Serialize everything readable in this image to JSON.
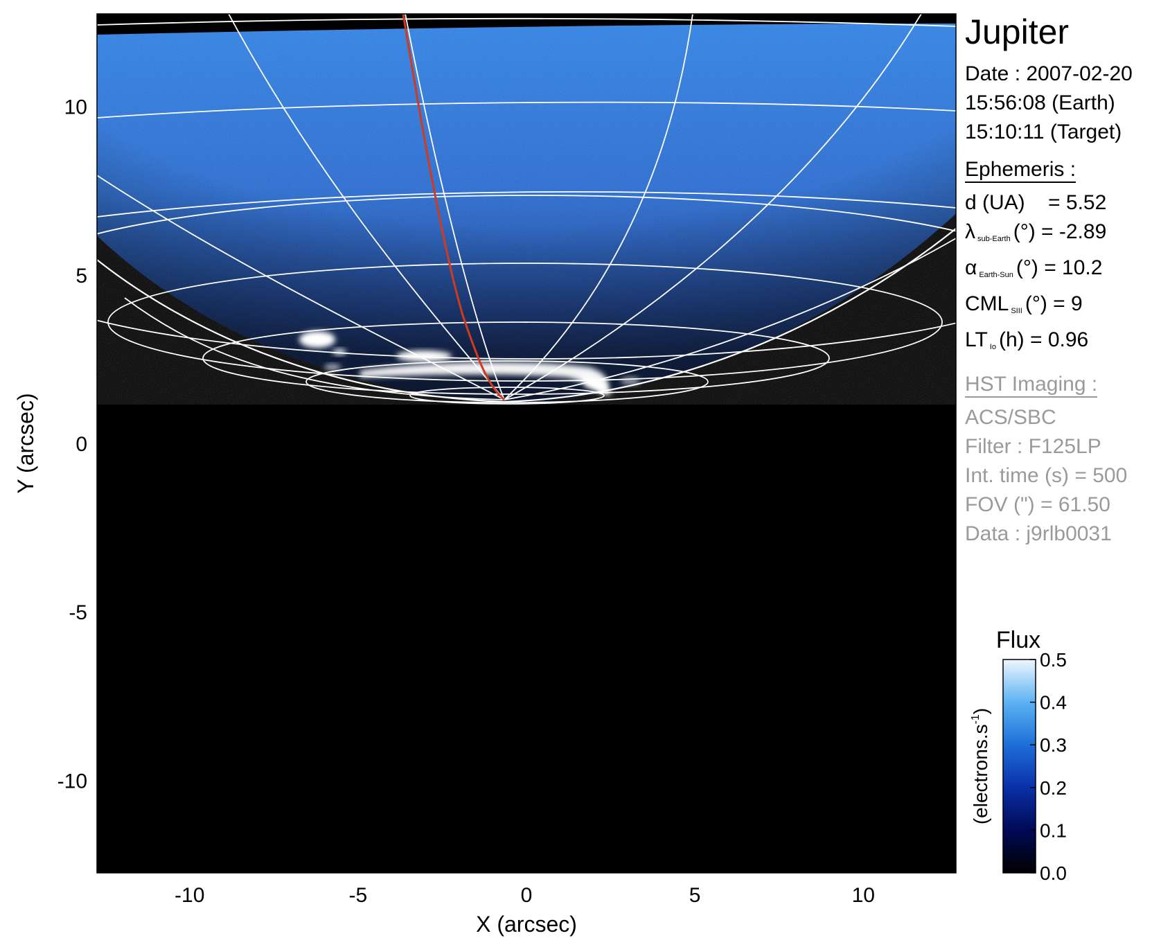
{
  "target": "Jupiter",
  "observation": {
    "date_line": "Date : 2007-02-20",
    "earth_time": "15:56:08 (Earth)",
    "target_time": "15:10:11 (Target)"
  },
  "ephemeris": {
    "heading": "Ephemeris :",
    "d_label": "d (UA)",
    "d_value": "= 5.52",
    "lambda_symbol": "λ",
    "lambda_sub": "sub-Earth",
    "lambda_rest": "(°) = -2.89",
    "alpha_symbol": "α",
    "alpha_sub": "Earth-Sun",
    "alpha_rest": "(°) = 10.2",
    "cml_symbol": "CML",
    "cml_sub": "SIII",
    "cml_rest": "(°) = 9",
    "lt_symbol": "LT",
    "lt_sub": "Io",
    "lt_rest": "(h) = 0.96"
  },
  "imaging": {
    "heading": "HST Imaging :",
    "instrument": "ACS/SBC",
    "filter": "Filter : F125LP",
    "int_time": "Int. time (s) = 500",
    "fov": "FOV (\") = 61.50",
    "data": "Data : j9rlb0031"
  },
  "axes": {
    "xlabel": "X (arcsec)",
    "ylabel": "Y (arcsec)",
    "xlim": [
      -12.75,
      12.75
    ],
    "ylim": [
      -12.75,
      12.75
    ],
    "x_ticks": [
      -10,
      -5,
      0,
      5,
      10
    ],
    "y_ticks": [
      -10,
      -5,
      0,
      5,
      10
    ]
  },
  "colorbar": {
    "title": "Flux",
    "unit": "(electrons.s-1)",
    "unit_main": "(electrons.s",
    "unit_sup": "-1",
    "unit_close": ")",
    "ticks": [
      "0.0",
      "0.1",
      "0.2",
      "0.3",
      "0.4",
      "0.5"
    ],
    "range": [
      0.0,
      0.5
    ],
    "colors": [
      "#000000",
      "#000a55",
      "#0a2fa8",
      "#1d6fd8",
      "#5cb2f2",
      "#eef6ff"
    ]
  },
  "colors": {
    "background": "#000000",
    "disk": "#1f6fd6",
    "grid": "#ffffff",
    "io_footprint": "#d23a1c",
    "aurora": "#ffffff"
  }
}
